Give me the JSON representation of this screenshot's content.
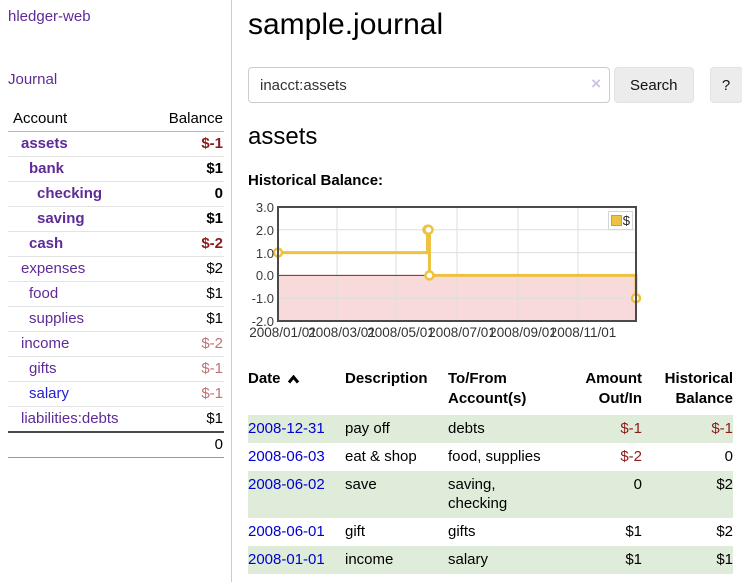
{
  "colors": {
    "accent_purple": "#5e2b97",
    "link_blue": "#0000cf",
    "negative_strong": "#8b1a1a",
    "negative_soft": "#bc7373",
    "row_highlight_green": "#dfecd9",
    "chart_line_yellow": "#edc240",
    "chart_negative_fill": "#f9dada",
    "chart_zero_line": "#9b1c1c",
    "chart_grid": "#dedede",
    "chart_border": "#4a4a4a"
  },
  "sidebar": {
    "app_title": "hledger-web",
    "journal_link": "Journal",
    "accounts_table": {
      "headers": {
        "account": "Account",
        "balance": "Balance"
      },
      "rows": [
        {
          "name": "assets",
          "balance": "$-1",
          "indent": 1,
          "bold": true,
          "name_style": "c-purple",
          "balance_style": "neg-strong"
        },
        {
          "name": "bank",
          "balance": "$1",
          "indent": 2,
          "bold": true,
          "name_style": "c-purple",
          "balance_style": ""
        },
        {
          "name": "checking",
          "balance": "0",
          "indent": 3,
          "bold": true,
          "name_style": "c-purple",
          "balance_style": ""
        },
        {
          "name": "saving",
          "balance": "$1",
          "indent": 3,
          "bold": true,
          "name_style": "c-purple",
          "balance_style": ""
        },
        {
          "name": "cash",
          "balance": "$-2",
          "indent": 2,
          "bold": true,
          "name_style": "c-purple",
          "balance_style": "neg-strong"
        },
        {
          "name": "expenses",
          "balance": "$2",
          "indent": 1,
          "bold": false,
          "name_style": "c-purple",
          "balance_style": ""
        },
        {
          "name": "food",
          "balance": "$1",
          "indent": 2,
          "bold": false,
          "name_style": "c-purple",
          "balance_style": ""
        },
        {
          "name": "supplies",
          "balance": "$1",
          "indent": 2,
          "bold": false,
          "name_style": "c-purple",
          "balance_style": ""
        },
        {
          "name": "income",
          "balance": "$-2",
          "indent": 1,
          "bold": false,
          "name_style": "c-purple",
          "balance_style": "neg-soft"
        },
        {
          "name": "gifts",
          "balance": "$-1",
          "indent": 2,
          "bold": false,
          "name_style": "c-purple",
          "balance_style": "neg-soft"
        },
        {
          "name": "salary",
          "balance": "$-1",
          "indent": 2,
          "bold": false,
          "name_style": "c-blue",
          "balance_style": "neg-soft"
        },
        {
          "name": "liabilities:debts",
          "balance": "$1",
          "indent": 1,
          "bold": false,
          "name_style": "c-purple",
          "balance_style": ""
        }
      ],
      "total": "0"
    }
  },
  "header": {
    "title": "sample.journal"
  },
  "search": {
    "query": "inacct:assets",
    "clear_icon": "×",
    "search_button": "Search",
    "help_button": "?"
  },
  "account_page": {
    "heading": "assets",
    "chart_label": "Historical Balance:"
  },
  "chart_data": {
    "type": "line",
    "step": true,
    "title": "Historical Balance",
    "series": [
      {
        "name": "$",
        "color": "#edc240",
        "x": [
          "2008/01/01",
          "2008/06/01",
          "2008/06/02",
          "2008/06/03",
          "2008/12/31"
        ],
        "x_day_of_year": [
          1,
          153,
          154,
          155,
          365
        ],
        "values": [
          1,
          2,
          2,
          0,
          -1
        ]
      }
    ],
    "xticks": [
      {
        "label": "2008/01/01",
        "day": 1
      },
      {
        "label": "2008/03/01",
        "day": 61
      },
      {
        "label": "2008/05/01",
        "day": 121
      },
      {
        "label": "2008/07/01",
        "day": 183
      },
      {
        "label": "2008/09/01",
        "day": 245
      },
      {
        "label": "2008/11/01",
        "day": 306
      }
    ],
    "yticks": [
      "3.0",
      "2.0",
      "1.0",
      "0.0",
      "-1.0",
      "-2.0"
    ],
    "ylim": [
      -2,
      3
    ],
    "xlim_days": [
      1,
      365
    ],
    "grid": true,
    "legend_position": "top-right",
    "negative_region_shaded": true
  },
  "register": {
    "columns": {
      "date": "Date",
      "description": "Description",
      "accounts": "To/From Account(s)",
      "amount": "Amount Out/In",
      "balance": "Historical Balance"
    },
    "sort": {
      "column": "date",
      "direction": "ascending"
    },
    "rows": [
      {
        "date": "2008-12-31",
        "description": "pay off",
        "accounts": "debts",
        "amount": "$-1",
        "amount_style": "neg-strong",
        "balance": "$-1",
        "balance_style": "neg-strong",
        "highlight": true
      },
      {
        "date": "2008-06-03",
        "description": "eat & shop",
        "accounts": "food, supplies",
        "amount": "$-2",
        "amount_style": "neg-strong",
        "balance": "0",
        "balance_style": "",
        "highlight": false
      },
      {
        "date": "2008-06-02",
        "description": "save",
        "accounts": "saving,\nchecking",
        "amount": "0",
        "amount_style": "",
        "balance": "$2",
        "balance_style": "",
        "highlight": true
      },
      {
        "date": "2008-06-01",
        "description": "gift",
        "accounts": "gifts",
        "amount": "$1",
        "amount_style": "",
        "balance": "$2",
        "balance_style": "",
        "highlight": false
      },
      {
        "date": "2008-01-01",
        "description": "income",
        "accounts": "salary",
        "amount": "$1",
        "amount_style": "",
        "balance": "$1",
        "balance_style": "",
        "highlight": true
      }
    ]
  }
}
